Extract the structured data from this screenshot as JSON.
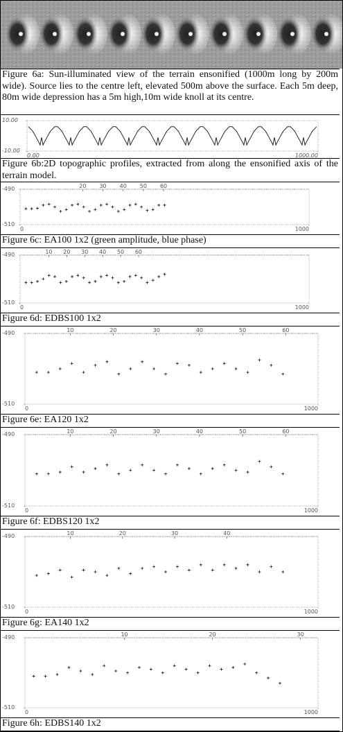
{
  "image_caption": "Figure 6a: Sun-illuminated view of the terrain ensonified (1000m long by 200m wide). Source lies to the centre left, elevated 500m above the surface. Each 5m deep, 80m wide depression has a 5m high,10m wide knoll at its centre.",
  "chart_data": [
    {
      "type": "line",
      "caption": "Figure 6b:2D topographic profiles, extracted from along the ensonified axis of the terrain model.",
      "color": "#222",
      "xlim": [
        0,
        1000
      ],
      "ylim": [
        -10,
        10
      ],
      "xticks": [
        {
          "value": 0,
          "label": "0.00"
        },
        {
          "value": 1000,
          "label": "1000.00"
        }
      ],
      "yticks": [
        {
          "value": -10,
          "label": "-10.00"
        },
        {
          "value": 10,
          "label": "10.00"
        }
      ],
      "x": [
        5,
        20,
        40,
        45,
        50,
        55,
        60,
        80,
        95,
        105,
        120,
        140,
        145,
        150,
        155,
        160,
        180,
        195,
        205,
        220,
        240,
        245,
        250,
        255,
        260,
        280,
        295,
        305,
        320,
        340,
        345,
        350,
        355,
        360,
        380,
        395,
        405,
        420,
        440,
        445,
        450,
        455,
        460,
        480,
        495,
        505,
        520,
        540,
        545,
        550,
        555,
        560,
        580,
        595,
        605,
        620,
        640,
        645,
        650,
        655,
        660,
        680,
        695,
        705,
        720,
        740,
        745,
        750,
        755,
        760,
        780,
        795,
        805,
        820,
        840,
        845,
        850,
        855,
        860,
        880,
        895,
        905,
        920,
        940,
        945,
        950,
        955,
        960,
        980,
        995
      ],
      "values": [
        6,
        3,
        -4,
        -6,
        -1,
        -6,
        -4,
        3,
        6,
        6,
        3,
        -4,
        -6,
        -1,
        -6,
        -4,
        3,
        6,
        6,
        3,
        -4,
        -6,
        -1,
        -6,
        -4,
        3,
        6,
        6,
        3,
        -4,
        -6,
        -1,
        -6,
        -4,
        3,
        6,
        6,
        3,
        -4,
        -6,
        -1,
        -6,
        -4,
        3,
        6,
        6,
        3,
        -4,
        -6,
        -1,
        -6,
        -4,
        3,
        6,
        6,
        3,
        -4,
        -6,
        -1,
        -6,
        -4,
        3,
        6,
        6,
        3,
        -4,
        -6,
        -1,
        -6,
        -4,
        3,
        6,
        6,
        3,
        -4,
        -6,
        -1,
        -6,
        -4,
        3,
        6,
        6,
        3,
        -4,
        -6,
        -1,
        -6,
        -4,
        3,
        6
      ]
    },
    {
      "type": "scatter",
      "caption": "Figure 6c: EA100 1x2  (green amplitude, blue phase)",
      "color": "#111",
      "xlim": [
        0,
        1000
      ],
      "ylim": [
        -510,
        -490
      ],
      "xticks": [
        0,
        1000
      ],
      "yticks": [
        -490,
        -510
      ],
      "x2lim": [
        -11,
        132
      ],
      "x2ticks": [
        20,
        30,
        40,
        50,
        60
      ],
      "x": [
        20,
        40,
        60,
        80,
        100,
        120,
        140,
        160,
        180,
        200,
        220,
        240,
        260,
        280,
        300,
        320,
        340,
        360,
        380,
        400,
        420,
        440,
        460,
        480,
        500
      ],
      "values": [
        -501,
        -501,
        -500.8,
        -499,
        -498.5,
        -500,
        -502.5,
        -501.5,
        -499,
        -498.5,
        -500,
        -502.5,
        -501.5,
        -499,
        -498.5,
        -500,
        -502.5,
        -501.5,
        -499,
        -498.5,
        -500,
        -502,
        -501.5,
        -499,
        -499
      ]
    },
    {
      "type": "scatter",
      "caption": "Figure 6d: EDBS100 1x2",
      "color": "#111",
      "xlim": [
        0,
        1000
      ],
      "ylim": [
        -510,
        -490
      ],
      "xticks": [
        0,
        1000
      ],
      "yticks": [
        -490,
        -510
      ],
      "x2lim": [
        -6,
        155
      ],
      "x2ticks": [
        10,
        20,
        30,
        40,
        50,
        60
      ],
      "x": [
        20,
        40,
        60,
        80,
        100,
        120,
        140,
        160,
        180,
        200,
        220,
        240,
        260,
        280,
        300,
        320,
        340,
        360,
        380,
        400,
        420,
        440,
        460,
        480,
        500
      ],
      "values": [
        -501.5,
        -501.5,
        -501,
        -500,
        -498.5,
        -499,
        -501.5,
        -501,
        -499,
        -498.5,
        -499.5,
        -501.5,
        -501,
        -499,
        -498.5,
        -499.5,
        -501.5,
        -501,
        -499,
        -498.5,
        -499.5,
        -501.5,
        -500.5,
        -499,
        -498
      ]
    },
    {
      "type": "scatter",
      "caption": "Figure 6e: EA120 1x2",
      "color": "#111",
      "xlim": [
        0,
        1000
      ],
      "ylim": [
        -510,
        -490
      ],
      "xticks": [
        0,
        1000
      ],
      "yticks": [
        -490,
        -510
      ],
      "x2lim": [
        -0.5,
        67.5
      ],
      "x2ticks": [
        10,
        20,
        30,
        40,
        50,
        60
      ],
      "x": [
        40,
        80,
        120,
        160,
        200,
        240,
        280,
        320,
        360,
        400,
        440,
        480,
        520,
        560,
        600,
        640,
        680,
        720,
        760,
        800,
        840,
        880
      ],
      "values": [
        -501,
        -501,
        -500,
        -498.5,
        -501,
        -499,
        -498,
        -501.5,
        -500,
        -498,
        -500,
        -501.5,
        -498.5,
        -499,
        -501,
        -500,
        -498.5,
        -500,
        -501,
        -497.5,
        -499,
        -501.5
      ]
    },
    {
      "type": "scatter",
      "caption": "Figure 6f: EDBS120 1x2",
      "color": "#111",
      "xlim": [
        0,
        1000
      ],
      "ylim": [
        -510,
        -490
      ],
      "xticks": [
        0,
        1000
      ],
      "yticks": [
        -490,
        -510
      ],
      "x2lim": [
        -0.5,
        67.5
      ],
      "x2ticks": [
        10,
        20,
        30,
        40,
        50,
        60
      ],
      "x": [
        40,
        80,
        120,
        160,
        200,
        240,
        280,
        320,
        360,
        400,
        440,
        480,
        520,
        560,
        600,
        640,
        680,
        720,
        760,
        800,
        840,
        880
      ],
      "values": [
        -501,
        -501,
        -500.5,
        -499,
        -500.5,
        -499.5,
        -498.5,
        -501,
        -500,
        -498.5,
        -500,
        -501,
        -498.5,
        -499.5,
        -501,
        -499.5,
        -498.5,
        -500,
        -500.5,
        -497.5,
        -499,
        -501
      ]
    },
    {
      "type": "scatter",
      "caption": "Figure 6g: EA140 1x2",
      "color": "#111",
      "xlim": [
        0,
        1000
      ],
      "ylim": [
        -510,
        -490
      ],
      "xticks": [
        0,
        1000
      ],
      "yticks": [
        -490,
        -510
      ],
      "x2lim": [
        1.3,
        57.5
      ],
      "x2ticks": [
        10,
        20,
        30,
        40
      ],
      "x": [
        40,
        80,
        120,
        160,
        200,
        240,
        280,
        320,
        360,
        400,
        440,
        480,
        520,
        560,
        600,
        640,
        680,
        720,
        760,
        800,
        840,
        880
      ],
      "values": [
        -501,
        -500.5,
        -499.5,
        -501.5,
        -499.5,
        -500,
        -501,
        -499,
        -500.5,
        -499,
        -498.5,
        -500,
        -498.5,
        -499.5,
        -498,
        -499.5,
        -498,
        -499,
        -498,
        -500,
        -498.5,
        -500
      ]
    },
    {
      "type": "scatter",
      "caption": "Figure 6h: EDBS140 1x2",
      "color": "#111",
      "xlim": [
        0,
        1000
      ],
      "ylim": [
        -510,
        -490
      ],
      "xticks": [
        0,
        1000
      ],
      "yticks": [
        -490,
        -510
      ],
      "x2lim": [
        -1.3,
        32
      ],
      "x2ticks": [
        10,
        20,
        30
      ],
      "x": [
        30,
        70,
        110,
        150,
        190,
        230,
        270,
        310,
        350,
        390,
        430,
        470,
        510,
        550,
        590,
        630,
        670,
        710,
        750,
        790,
        830,
        870
      ],
      "values": [
        -501,
        -501,
        -500.5,
        -498.5,
        -499.5,
        -500.5,
        -498,
        -499.5,
        -500,
        -498.5,
        -499,
        -500,
        -498,
        -499,
        -500,
        -498,
        -499,
        -498.5,
        -497.5,
        -500,
        -501.5,
        -503
      ]
    }
  ]
}
